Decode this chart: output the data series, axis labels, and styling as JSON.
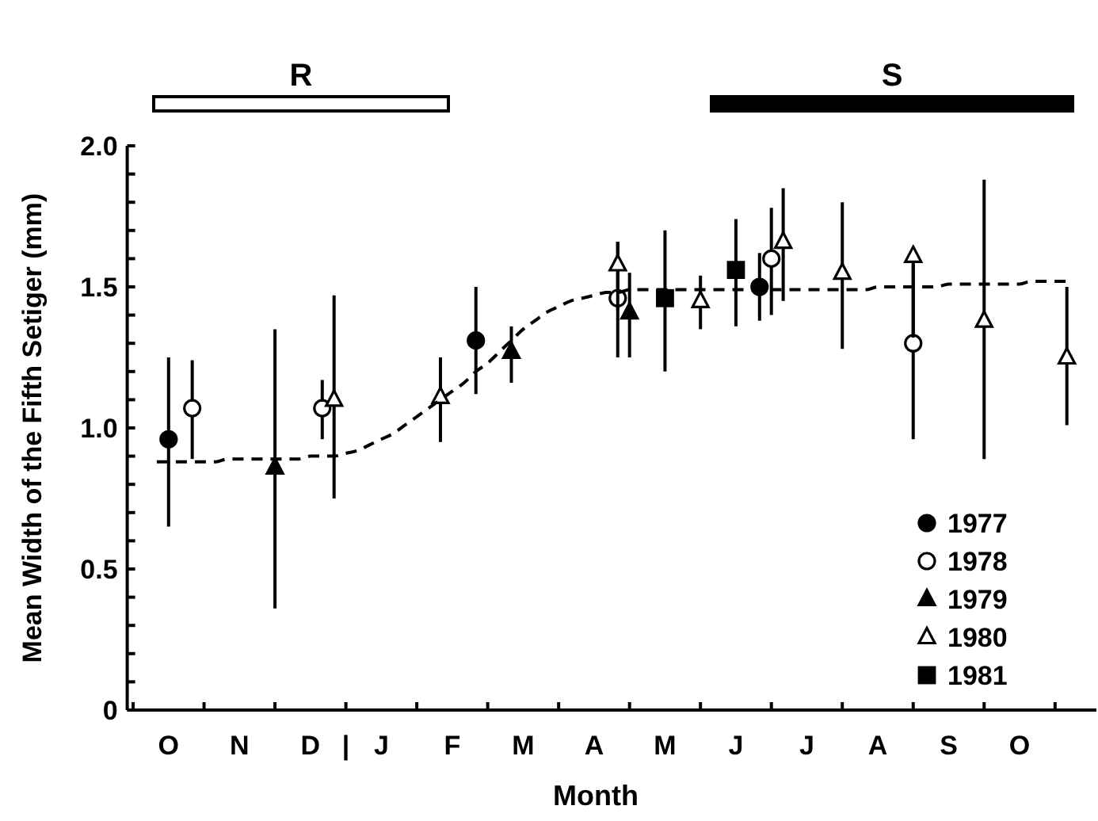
{
  "chart_data": {
    "type": "scatter",
    "xlabel": "Month",
    "ylabel": "Mean Width of the Fifth Setiger (mm)",
    "annotations": [
      "R",
      "S"
    ],
    "categories": [
      null,
      null,
      null,
      "O",
      null,
      null,
      null,
      null,
      null,
      "N",
      null,
      null,
      null,
      null,
      null,
      "D",
      null,
      null,
      "|",
      null,
      null,
      "J",
      null,
      null,
      null,
      null,
      null,
      "F",
      null,
      null,
      null,
      null,
      null,
      "M",
      null,
      null,
      null,
      null,
      null,
      "A",
      null,
      null,
      null,
      null,
      null,
      "M",
      null,
      null,
      null,
      null,
      null,
      "J",
      null,
      null,
      null,
      null,
      null,
      "J",
      null,
      null,
      null,
      null,
      null,
      "A",
      null,
      null,
      null,
      null,
      null,
      "S",
      null,
      null,
      null,
      null,
      null,
      "O",
      null,
      null,
      null,
      null,
      null,
      null
    ],
    "ylim": [
      0,
      2.0
    ],
    "yticks": [
      0,
      {
        "value": 0.1,
        "label": null
      },
      {
        "value": 0.2,
        "label": null
      },
      {
        "value": 0.3,
        "label": null
      },
      {
        "value": 0.4,
        "label": null
      },
      {
        "value": 0.5,
        "label": "0.5"
      },
      {
        "value": 0.6,
        "label": null
      },
      {
        "value": 0.7,
        "label": null
      },
      {
        "value": 0.8,
        "label": null
      },
      {
        "value": 0.9,
        "label": null
      },
      {
        "value": 1.0,
        "label": "1.0"
      },
      {
        "value": 1.1,
        "label": null
      },
      {
        "value": 1.2,
        "label": null
      },
      {
        "value": 1.3,
        "label": null
      },
      {
        "value": 1.4,
        "label": null
      },
      {
        "value": 1.5,
        "label": "1.5"
      },
      {
        "value": 1.6,
        "label": null
      },
      {
        "value": 1.7,
        "label": null
      },
      {
        "value": 1.8,
        "label": null
      },
      {
        "value": 1.9,
        "label": null
      },
      {
        "value": 2.0,
        "label": "2.0"
      }
    ],
    "legend": "bottom right",
    "series": [
      {
        "name": "1977",
        "color": "#000000",
        "marker": "circle",
        "values": [
          null,
          null,
          null,
          0.96,
          null,
          null,
          null,
          null,
          null,
          null,
          null,
          null,
          null,
          null,
          null,
          null,
          null,
          null,
          null,
          null,
          null,
          null,
          null,
          null,
          null,
          null,
          null,
          null,
          null,
          1.31,
          null,
          null,
          null,
          null,
          null,
          null,
          null,
          null,
          null,
          null,
          null,
          null,
          null,
          null,
          null,
          null,
          null,
          null,
          null,
          null,
          null,
          null,
          null,
          1.5,
          null,
          null,
          null,
          null,
          null,
          null,
          null,
          null,
          null,
          null,
          null,
          null,
          null,
          null,
          null,
          null,
          null,
          null,
          null,
          null,
          null,
          null,
          null,
          null,
          null,
          null,
          null,
          null
        ],
        "errors": [
          null,
          null,
          null,
          [
            0.65,
            1.25
          ],
          null,
          null,
          null,
          null,
          null,
          null,
          null,
          null,
          null,
          null,
          null,
          null,
          null,
          null,
          null,
          null,
          null,
          null,
          null,
          null,
          null,
          null,
          null,
          null,
          null,
          [
            1.12,
            1.5
          ],
          null,
          null,
          null,
          null,
          null,
          null,
          null,
          null,
          null,
          null,
          null,
          null,
          null,
          null,
          null,
          null,
          null,
          null,
          null,
          null,
          null,
          null,
          null,
          [
            1.38,
            1.62
          ],
          null,
          null,
          null,
          null,
          null,
          null,
          null,
          null,
          null,
          null,
          null,
          null,
          null,
          null,
          null,
          null,
          null,
          null,
          null,
          null,
          null,
          null,
          null,
          null,
          null,
          null,
          null,
          null
        ]
      },
      {
        "name": "1978",
        "color": "#ffffff",
        "marker": "circle",
        "values": [
          null,
          null,
          null,
          null,
          null,
          1.07,
          null,
          null,
          null,
          null,
          null,
          null,
          null,
          null,
          null,
          null,
          1.07,
          null,
          null,
          null,
          null,
          null,
          null,
          null,
          null,
          null,
          null,
          null,
          null,
          null,
          null,
          null,
          null,
          null,
          null,
          null,
          null,
          null,
          null,
          null,
          null,
          1.46,
          null,
          null,
          null,
          null,
          null,
          null,
          null,
          null,
          null,
          null,
          null,
          null,
          1.6,
          null,
          null,
          null,
          null,
          null,
          null,
          null,
          null,
          null,
          null,
          null,
          1.3,
          null,
          null,
          null,
          null,
          null,
          null,
          null,
          null,
          null,
          null,
          null,
          null,
          null,
          null,
          null
        ],
        "errors": [
          null,
          null,
          null,
          null,
          null,
          [
            0.89,
            1.24
          ],
          null,
          null,
          null,
          null,
          null,
          null,
          null,
          null,
          null,
          null,
          [
            0.96,
            1.17
          ],
          null,
          null,
          null,
          null,
          null,
          null,
          null,
          null,
          null,
          null,
          null,
          null,
          null,
          null,
          null,
          null,
          null,
          null,
          null,
          null,
          null,
          null,
          null,
          null,
          [
            1.25,
            1.66
          ],
          null,
          null,
          null,
          null,
          null,
          null,
          null,
          null,
          null,
          null,
          null,
          null,
          [
            1.4,
            1.78
          ],
          null,
          null,
          null,
          null,
          null,
          null,
          null,
          null,
          null,
          null,
          null,
          [
            0.96,
            1.58
          ],
          null,
          null,
          null,
          null,
          null,
          null,
          null,
          null,
          null,
          null,
          null,
          null,
          null,
          null,
          null
        ]
      },
      {
        "name": "1979",
        "color": "#000000",
        "marker": "triangle",
        "values": [
          null,
          null,
          null,
          null,
          null,
          null,
          null,
          null,
          null,
          null,
          null,
          null,
          0.86,
          null,
          null,
          null,
          null,
          null,
          null,
          null,
          null,
          null,
          null,
          null,
          null,
          null,
          null,
          null,
          null,
          null,
          null,
          null,
          1.27,
          null,
          null,
          null,
          null,
          null,
          null,
          null,
          null,
          null,
          1.41,
          null,
          null,
          null,
          null,
          null,
          null,
          null,
          null,
          null,
          null,
          null,
          null,
          null,
          null,
          null,
          null,
          null,
          null,
          null,
          null,
          null,
          null,
          null,
          null,
          null,
          null,
          null,
          null,
          null,
          null,
          null,
          null,
          null,
          null,
          null,
          null,
          null,
          null,
          null
        ],
        "errors": [
          null,
          null,
          null,
          null,
          null,
          null,
          null,
          null,
          null,
          null,
          null,
          null,
          [
            0.36,
            1.35
          ],
          null,
          null,
          null,
          null,
          null,
          null,
          null,
          null,
          null,
          null,
          null,
          null,
          null,
          null,
          null,
          null,
          null,
          null,
          null,
          [
            1.16,
            1.36
          ],
          null,
          null,
          null,
          null,
          null,
          null,
          null,
          null,
          null,
          [
            1.25,
            1.55
          ],
          null,
          null,
          null,
          null,
          null,
          null,
          null,
          null,
          null,
          null,
          null,
          null,
          null,
          null,
          null,
          null,
          null,
          null,
          null,
          null,
          null,
          null,
          null,
          null,
          null,
          null,
          null,
          null,
          null,
          null,
          null,
          null,
          null,
          null,
          null,
          null,
          null,
          null,
          null
        ]
      },
      {
        "name": "1980",
        "color": "#ffffff",
        "marker": "triangle",
        "values": [
          null,
          null,
          null,
          null,
          null,
          null,
          null,
          null,
          null,
          null,
          null,
          null,
          null,
          null,
          null,
          null,
          null,
          1.1,
          null,
          null,
          null,
          null,
          null,
          null,
          null,
          null,
          1.11,
          null,
          null,
          null,
          null,
          null,
          null,
          null,
          null,
          null,
          null,
          null,
          null,
          null,
          null,
          1.58,
          null,
          null,
          null,
          null,
          null,
          null,
          1.45,
          null,
          null,
          null,
          null,
          null,
          null,
          1.66,
          null,
          null,
          null,
          null,
          1.55,
          null,
          null,
          null,
          null,
          null,
          1.61,
          null,
          null,
          null,
          null,
          null,
          1.38,
          null,
          null,
          null,
          null,
          null,
          null,
          1.25,
          null,
          null
        ],
        "errors": [
          null,
          null,
          null,
          null,
          null,
          null,
          null,
          null,
          null,
          null,
          null,
          null,
          null,
          null,
          null,
          null,
          null,
          [
            0.75,
            1.47
          ],
          null,
          null,
          null,
          null,
          null,
          null,
          null,
          null,
          [
            0.95,
            1.25
          ],
          null,
          null,
          null,
          null,
          null,
          null,
          null,
          null,
          null,
          null,
          null,
          null,
          null,
          null,
          [
            1.42,
            1.66
          ],
          null,
          null,
          null,
          null,
          null,
          null,
          [
            1.35,
            1.54
          ],
          null,
          null,
          null,
          null,
          null,
          null,
          [
            1.45,
            1.85
          ],
          null,
          null,
          null,
          null,
          [
            1.28,
            1.8
          ],
          null,
          null,
          null,
          null,
          null,
          [
            1.32,
            1.62
          ],
          null,
          null,
          null,
          null,
          null,
          [
            0.89,
            1.88
          ],
          null,
          null,
          null,
          null,
          null,
          null,
          [
            1.01,
            1.5
          ],
          null,
          null
        ]
      },
      {
        "name": "1981",
        "color": "#000000",
        "marker": "square",
        "values": [
          null,
          null,
          null,
          null,
          null,
          null,
          null,
          null,
          null,
          null,
          null,
          null,
          null,
          null,
          null,
          null,
          null,
          null,
          null,
          null,
          null,
          null,
          null,
          null,
          null,
          null,
          null,
          null,
          null,
          null,
          null,
          null,
          null,
          null,
          null,
          null,
          null,
          null,
          null,
          null,
          null,
          null,
          null,
          null,
          null,
          1.46,
          null,
          null,
          null,
          null,
          null,
          1.56,
          null,
          null,
          null,
          null,
          null,
          null,
          null,
          null,
          null,
          null,
          null,
          null,
          null,
          null,
          null,
          null,
          null,
          null,
          null,
          null,
          null,
          null,
          null,
          null,
          null,
          null,
          null,
          null,
          null,
          null
        ],
        "errors": [
          null,
          null,
          null,
          null,
          null,
          null,
          null,
          null,
          null,
          null,
          null,
          null,
          null,
          null,
          null,
          null,
          null,
          null,
          null,
          null,
          null,
          null,
          null,
          null,
          null,
          null,
          null,
          null,
          null,
          null,
          null,
          null,
          null,
          null,
          null,
          null,
          null,
          null,
          null,
          null,
          null,
          null,
          null,
          null,
          null,
          [
            1.2,
            1.7
          ],
          null,
          null,
          null,
          null,
          null,
          [
            1.36,
            1.74
          ],
          null,
          null,
          null,
          null,
          null,
          null,
          null,
          null,
          null,
          null,
          null,
          null,
          null,
          null,
          null,
          null,
          null,
          null,
          null,
          null,
          null,
          null,
          null,
          null,
          null,
          null,
          null,
          null,
          null,
          null
        ]
      },
      {
        "type": "line",
        "color": "#000000",
        "marker": "none",
        "line_style": "dashed",
        "values": [
          null,
          null,
          0.88,
          0.88,
          0.88,
          0.88,
          0.88,
          0.88,
          0.89,
          0.89,
          0.89,
          0.89,
          0.89,
          0.89,
          0.89,
          0.9,
          0.9,
          0.9,
          0.91,
          0.92,
          0.94,
          0.96,
          0.98,
          1.01,
          1.04,
          1.07,
          1.1,
          1.13,
          1.16,
          1.2,
          1.23,
          1.27,
          1.31,
          1.35,
          1.38,
          1.41,
          1.43,
          1.45,
          1.46,
          1.47,
          1.48,
          1.48,
          1.49,
          1.49,
          1.49,
          1.49,
          1.49,
          1.49,
          1.49,
          1.49,
          1.49,
          1.49,
          1.49,
          1.49,
          1.49,
          1.49,
          1.49,
          1.49,
          1.49,
          1.49,
          1.49,
          1.49,
          1.49,
          1.5,
          1.5,
          1.5,
          1.5,
          1.5,
          1.5,
          1.51,
          1.51,
          1.51,
          1.51,
          1.51,
          1.51,
          1.51,
          1.52,
          1.52,
          1.52,
          1.52,
          null,
          null
        ]
      }
    ]
  }
}
